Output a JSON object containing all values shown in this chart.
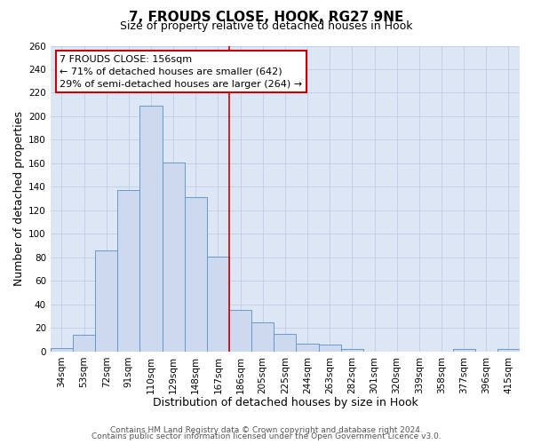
{
  "title": "7, FROUDS CLOSE, HOOK, RG27 9NE",
  "subtitle": "Size of property relative to detached houses in Hook",
  "xlabel": "Distribution of detached houses by size in Hook",
  "ylabel": "Number of detached properties",
  "bar_labels": [
    "34sqm",
    "53sqm",
    "72sqm",
    "91sqm",
    "110sqm",
    "129sqm",
    "148sqm",
    "167sqm",
    "186sqm",
    "205sqm",
    "225sqm",
    "244sqm",
    "263sqm",
    "282sqm",
    "301sqm",
    "320sqm",
    "339sqm",
    "358sqm",
    "377sqm",
    "396sqm",
    "415sqm"
  ],
  "bar_heights": [
    3,
    14,
    86,
    137,
    209,
    161,
    131,
    81,
    35,
    25,
    15,
    7,
    6,
    2,
    0,
    0,
    0,
    0,
    2,
    0,
    2
  ],
  "bar_color": "#ccd9ee",
  "bar_edge_color": "#6699cc",
  "vline_position": 7.5,
  "vline_color": "#cc0000",
  "ylim": [
    0,
    260
  ],
  "yticks": [
    0,
    20,
    40,
    60,
    80,
    100,
    120,
    140,
    160,
    180,
    200,
    220,
    240,
    260
  ],
  "annotation_title": "7 FROUDS CLOSE: 156sqm",
  "annotation_line1": "← 71% of detached houses are smaller (642)",
  "annotation_line2": "29% of semi-detached houses are larger (264) →",
  "annotation_box_color": "#ffffff",
  "annotation_box_edge": "#cc0000",
  "footer_line1": "Contains HM Land Registry data © Crown copyright and database right 2024.",
  "footer_line2": "Contains public sector information licensed under the Open Government Licence v3.0.",
  "plot_bg_color": "#dce6f5",
  "fig_bg_color": "#ffffff",
  "grid_color": "#b8c8e0",
  "title_fontsize": 11,
  "subtitle_fontsize": 9,
  "axis_label_fontsize": 9,
  "tick_fontsize": 7.5,
  "annotation_fontsize": 8,
  "footer_fontsize": 6.5
}
